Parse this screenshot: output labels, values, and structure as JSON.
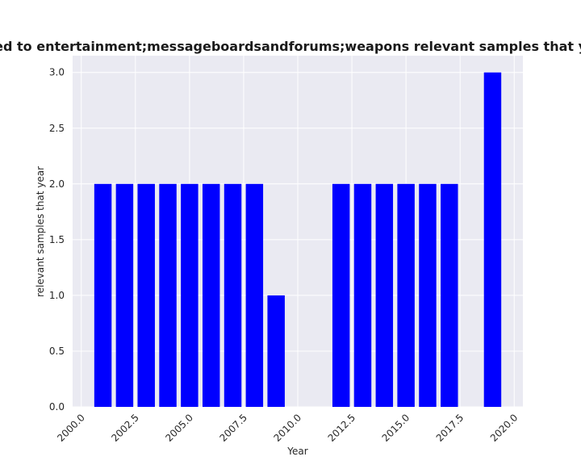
{
  "chart_data": {
    "type": "bar",
    "title": "e related to entertainment;messageboardsandforums;weapons relevant samples that year in pr",
    "xlabel": "Year",
    "ylabel": "relevant samples that year",
    "x": [
      2001,
      2002,
      2003,
      2004,
      2005,
      2006,
      2007,
      2008,
      2009,
      2012,
      2013,
      2014,
      2015,
      2016,
      2017,
      2019
    ],
    "values": [
      2,
      2,
      2,
      2,
      2,
      2,
      2,
      2,
      1,
      2,
      2,
      2,
      2,
      2,
      2,
      3
    ],
    "xlim": [
      1999.6,
      2020.4
    ],
    "ylim": [
      0,
      3.15
    ],
    "xticks": [
      2000.0,
      2002.5,
      2005.0,
      2007.5,
      2010.0,
      2012.5,
      2015.0,
      2017.5,
      2020.0
    ],
    "xtick_labels": [
      "2000.0",
      "2002.5",
      "2005.0",
      "2007.5",
      "2010.0",
      "2012.5",
      "2015.0",
      "2017.5",
      "2020.0"
    ],
    "yticks": [
      0,
      0.5,
      1.0,
      1.5,
      2.0,
      2.5,
      3.0
    ],
    "ytick_labels": [
      "0.0",
      "0.5",
      "1.0",
      "1.5",
      "2.0",
      "2.5",
      "3.0"
    ],
    "bar_color": "#0000ff",
    "plot_background": "#eaeaf2",
    "grid": true,
    "legend": "none"
  }
}
